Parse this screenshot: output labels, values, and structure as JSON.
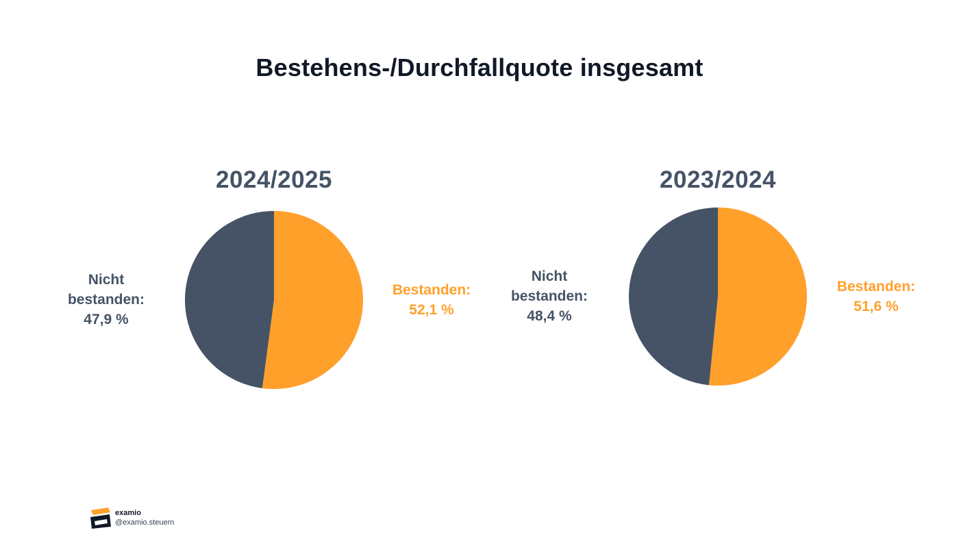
{
  "title": "Bestehens-/Durchfallquote insgesamt",
  "colors": {
    "bestanden": "#FFA02B",
    "nicht_bestanden": "#465366",
    "year_label": "#465366",
    "title": "#111827"
  },
  "chart_data": [
    {
      "type": "pie",
      "title": "2024/2025",
      "slices": [
        {
          "label_lines": [
            "Bestanden:",
            "52,1 %"
          ],
          "value": 52.1,
          "color": "#FFA02B"
        },
        {
          "label_lines": [
            "Nicht",
            "bestanden:",
            "47,9 %"
          ],
          "value": 47.9,
          "color": "#465366"
        }
      ]
    },
    {
      "type": "pie",
      "title": "2023/2024",
      "slices": [
        {
          "label_lines": [
            "Bestanden:",
            "51,6 %"
          ],
          "value": 51.6,
          "color": "#FFA02B"
        },
        {
          "label_lines": [
            "Nicht",
            "bestanden:",
            "48,4 %"
          ],
          "value": 48.4,
          "color": "#465366"
        }
      ]
    }
  ],
  "footer": {
    "brand": "examio",
    "handle": "@examio.steuern",
    "logo_icon": "graduation-cap-icon"
  }
}
